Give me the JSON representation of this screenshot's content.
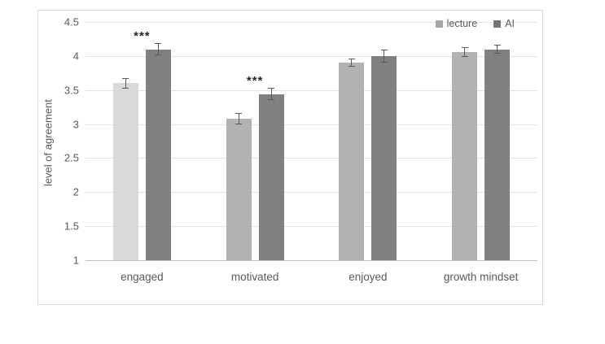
{
  "figure": {
    "background_color": "#ffffff",
    "frame_border_color": "#d9d9d9",
    "gridline_color": "#e2e2e2",
    "axis_line_color": "#bfbfbf",
    "text_color": "#595959",
    "error_bar_color": "#595959",
    "annotation_color": "#262626"
  },
  "legend": {
    "position": "top-right",
    "items": [
      {
        "label": "lecture",
        "swatch_color": "#a6a6a6"
      },
      {
        "label": "AI",
        "swatch_color": "#757575"
      }
    ]
  },
  "chart_data": {
    "type": "bar",
    "title": "",
    "xlabel": "",
    "ylabel": "level of agreement",
    "categories": [
      "engaged",
      "motivated",
      "enjoyed",
      "growth mindset"
    ],
    "series": [
      {
        "name": "lecture",
        "values": [
          3.6,
          3.08,
          3.9,
          4.06
        ],
        "errors": [
          0.08,
          0.08,
          0.06,
          0.07
        ],
        "point_colors": [
          "#d9d9d9",
          "#b2b2b2",
          "#b2b2b2",
          "#b2b2b2"
        ]
      },
      {
        "name": "AI",
        "values": [
          4.1,
          3.44,
          4.0,
          4.1
        ],
        "errors": [
          0.09,
          0.09,
          0.1,
          0.07
        ],
        "point_colors": [
          "#808080",
          "#808080",
          "#808080",
          "#808080"
        ]
      }
    ],
    "annotations": [
      {
        "category_index": 0,
        "text": "***"
      },
      {
        "category_index": 1,
        "text": "***"
      }
    ],
    "ylim": [
      1,
      4.5
    ],
    "yticks": [
      4.5,
      4,
      3.5,
      3,
      2.5,
      2,
      1.5,
      1
    ],
    "ytick_labels": [
      "4.5",
      "4",
      "3.5",
      "3",
      "2.5",
      "2",
      "1.5",
      "1"
    ],
    "grid": true,
    "legend_position": "top-right"
  }
}
